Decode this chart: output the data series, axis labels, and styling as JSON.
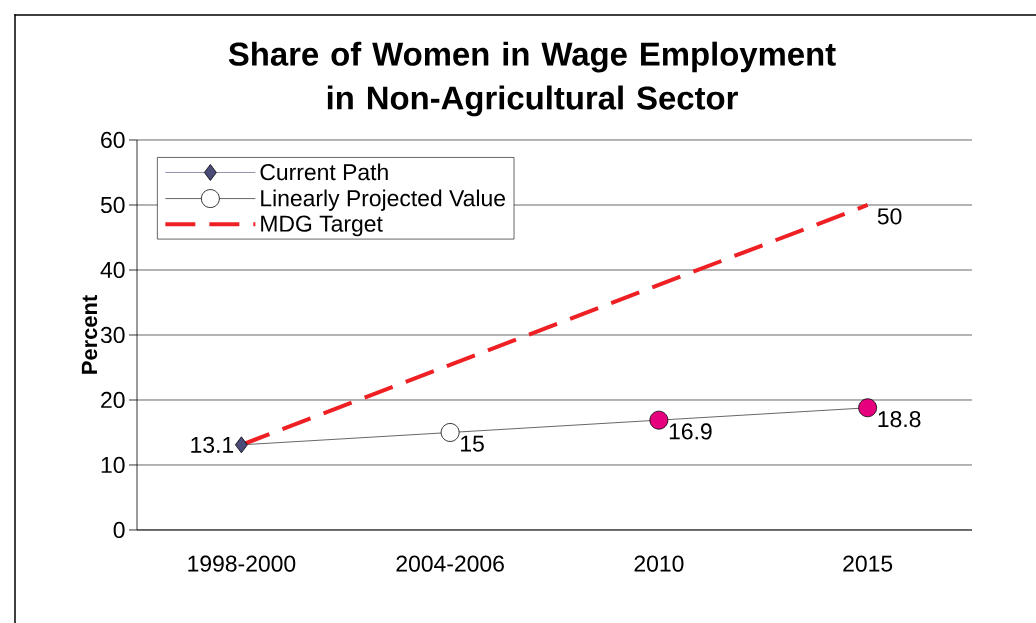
{
  "chart_data": {
    "type": "line",
    "title": "Share of Women in Wage Employment in Non-Agricultural Sector",
    "ylabel": "Percent",
    "categories": [
      "1998-2000",
      "2004-2006",
      "2010",
      "2015"
    ],
    "series": [
      {
        "name": "Current Path",
        "color": "#4b4b7a",
        "values": [
          13.1,
          null,
          null,
          null
        ],
        "marker": "diamond"
      },
      {
        "name": "Linearly Projected Value",
        "color": "#000000",
        "values": [
          13.1,
          15,
          16.9,
          18.8
        ],
        "marker": "circle",
        "colors": [
          null,
          "#ffffff",
          "#e6007e",
          "#e6007e"
        ],
        "value_labels": [
          "13.1",
          "15",
          "16.9",
          "18.8"
        ]
      },
      {
        "name": "MDG Target",
        "color": "#ee2024",
        "values": [
          13.1,
          null,
          null,
          50
        ],
        "marker": "none",
        "line_style": "dashed",
        "value_labels": [
          null,
          null,
          null,
          "50"
        ]
      }
    ],
    "ylim": [
      0,
      60
    ],
    "yticks": [
      0,
      10,
      20,
      30,
      40,
      50,
      60
    ],
    "grid": "y",
    "legend": "top left"
  }
}
